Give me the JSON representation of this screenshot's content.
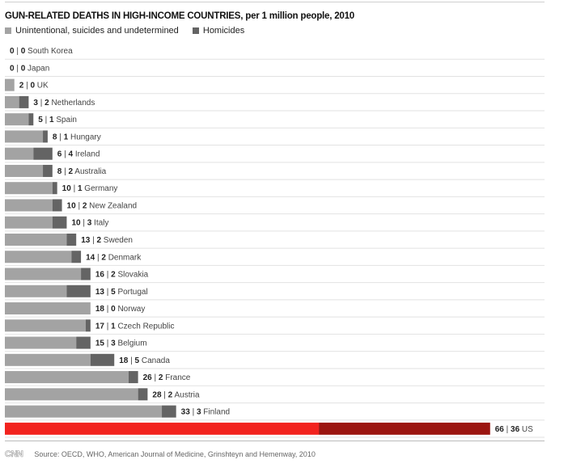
{
  "logo_text": "CNN",
  "source": "Source: OECD, WHO, American Journal of Medicine, Grinshteyn and Hemenway, 2010",
  "colors": {
    "unintentional": "#a3a3a3",
    "homicides": "#646464",
    "highlight_unintentional": "#f2231e",
    "highlight_homicides": "#9b1510",
    "highlight_text": "#cc1a15"
  },
  "chart_data": {
    "type": "bar",
    "orientation": "horizontal",
    "stacked": true,
    "title": "GUN-RELATED DEATHS IN HIGH-INCOME COUNTRIES, per 1 million people, 2010",
    "legend": [
      "Unintentional, suicides and undetermined",
      "Homicides"
    ],
    "legend_position": "top-left",
    "categories": [
      "South Korea",
      "Japan",
      "UK",
      "Netherlands",
      "Spain",
      "Hungary",
      "Ireland",
      "Australia",
      "Germany",
      "New Zealand",
      "Italy",
      "Sweden",
      "Denmark",
      "Slovakia",
      "Portugal",
      "Norway",
      "Czech Republic",
      "Belgium",
      "Canada",
      "France",
      "Austria",
      "Finland",
      "US"
    ],
    "series": [
      {
        "name": "Unintentional, suicides and undetermined",
        "values": [
          0,
          0,
          2,
          3,
          5,
          8,
          6,
          8,
          10,
          10,
          10,
          13,
          14,
          16,
          13,
          18,
          17,
          15,
          18,
          26,
          28,
          33,
          66
        ]
      },
      {
        "name": "Homicides",
        "values": [
          0,
          0,
          0,
          2,
          1,
          1,
          4,
          2,
          1,
          2,
          3,
          2,
          2,
          2,
          5,
          0,
          1,
          3,
          5,
          2,
          2,
          3,
          36
        ]
      }
    ],
    "highlight": "US",
    "grid": false
  }
}
